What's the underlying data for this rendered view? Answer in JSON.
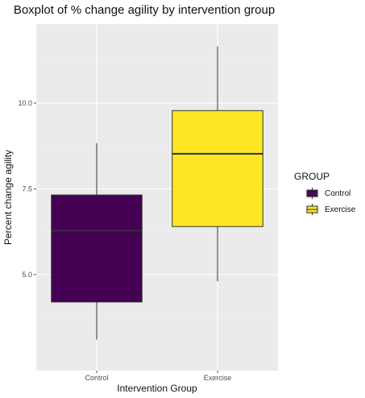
{
  "chart_data": {
    "type": "boxplot",
    "title": "Boxplot of % change agility by intervention group",
    "xlabel": "Intervention Group",
    "ylabel": "Percent change agility",
    "categories": [
      "Control",
      "Exercise"
    ],
    "yticks": [
      "5.0",
      "7.5",
      "10.0"
    ],
    "ylim": [
      2.2,
      12.3
    ],
    "grid": true,
    "legend": {
      "title": "GROUP",
      "placement": "right",
      "entries": [
        "Control",
        "Exercise"
      ]
    },
    "boxes": [
      {
        "group": "Control",
        "min": 3.1,
        "q1": 4.2,
        "median": 6.28,
        "q3": 7.32,
        "max": 8.83,
        "color": "#440154"
      },
      {
        "group": "Exercise",
        "min": 4.8,
        "q1": 6.4,
        "median": 8.52,
        "q3": 9.78,
        "max": 11.65,
        "color": "#FDE725"
      }
    ]
  },
  "colors": {
    "panel_background": "#EBEBEB",
    "grid_major": "#FFFFFF",
    "grid_minor": "#F4F4F4",
    "box_outline": "#333333",
    "whisker": "#333333"
  }
}
